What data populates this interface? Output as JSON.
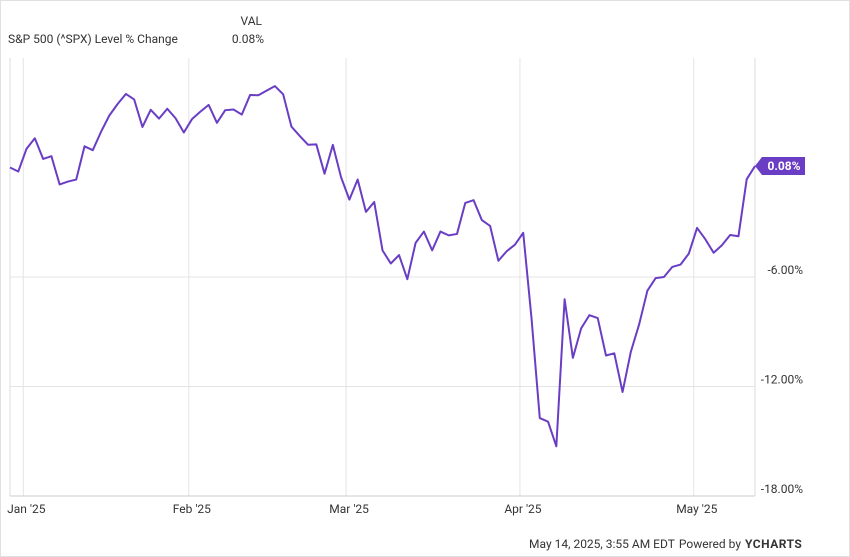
{
  "chart_data": {
    "type": "line",
    "legend_header": "VAL",
    "categories": [
      null,
      "Jan '25",
      null,
      null,
      null,
      null,
      null,
      null,
      null,
      null,
      null,
      null,
      null,
      null,
      null,
      null,
      null,
      null,
      null,
      null,
      null,
      "Feb '25",
      null,
      null,
      null,
      null,
      null,
      null,
      null,
      null,
      null,
      null,
      null,
      null,
      null,
      null,
      null,
      null,
      null,
      null,
      "Mar '25",
      null,
      null,
      null,
      null,
      null,
      null,
      null,
      null,
      null,
      null,
      null,
      null,
      null,
      null,
      null,
      null,
      null,
      null,
      null,
      null,
      "Apr '25",
      null,
      null,
      null,
      null,
      null,
      null,
      null,
      null,
      null,
      null,
      null,
      null,
      null,
      null,
      null,
      null,
      null,
      null,
      null,
      null,
      "May '25",
      null,
      null,
      null,
      null,
      null,
      null,
      null,
      null
    ],
    "series": [
      {
        "name": "S&P 500 (^SPX) Level % Change",
        "color": "#6a3ec4",
        "last_label": "0.08%",
        "values": [
          0,
          -0.22,
          1.03,
          1.6,
          0.47,
          0.62,
          -0.93,
          -0.77,
          -0.66,
          1.16,
          0.95,
          1.96,
          2.85,
          3.48,
          4.03,
          3.73,
          2.22,
          3.16,
          2.68,
          3.22,
          2.7,
          1.92,
          2.66,
          3.06,
          3.43,
          2.45,
          3.14,
          3.18,
          2.9,
          3.97,
          3.96,
          4.21,
          4.46,
          4.01,
          2.24,
          1.73,
          1.25,
          1.27,
          -0.34,
          1.24,
          -0.54,
          -1.76,
          -0.66,
          -2.43,
          -1.89,
          -4.54,
          -5.26,
          -4.8,
          -6.12,
          -4.13,
          -3.51,
          -4.54,
          -3.51,
          -3.72,
          -3.64,
          -1.94,
          -1.79,
          -2.88,
          -3.2,
          -5.11,
          -4.59,
          -4.23,
          -3.58,
          -8.25,
          -13.73,
          -13.93,
          -15.28,
          -7.22,
          -10.43,
          -8.81,
          -8.09,
          -8.25,
          -10.3,
          -10.18,
          -12.3,
          -10.1,
          -8.6,
          -6.75,
          -6.06,
          -6,
          -5.45,
          -5.32,
          -4.72,
          -3.31,
          -3.93,
          -4.67,
          -4.26,
          -3.7,
          -3.77,
          -0.64,
          0.08
        ]
      }
    ],
    "ylim": [
      -18,
      6
    ],
    "yticks": [
      {
        "value": -18,
        "label": "-18.00%"
      },
      {
        "value": -12,
        "label": "-12.00%"
      },
      {
        "value": -6,
        "label": "-6.00%"
      }
    ],
    "grid": true,
    "footer": {
      "timestamp": "May 14, 2025, 3:55 AM EDT",
      "credit": "Powered by",
      "brand": "YCHARTS"
    }
  }
}
